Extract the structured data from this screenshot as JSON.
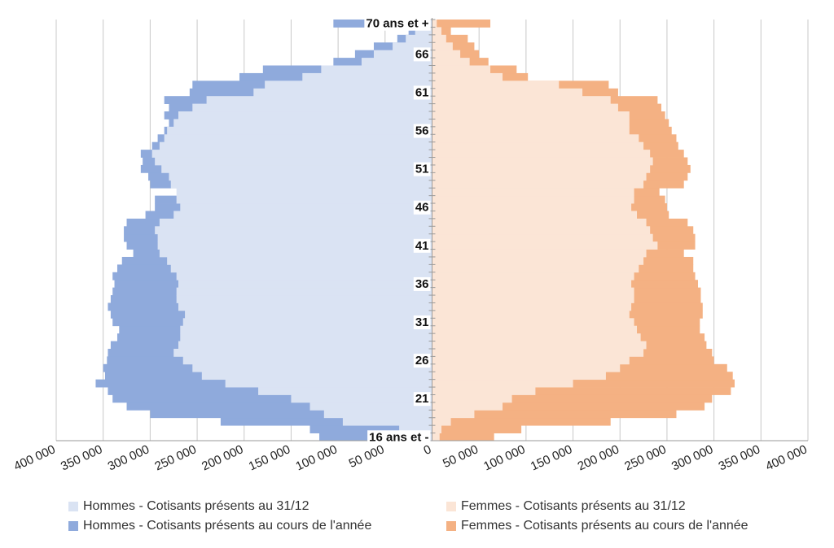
{
  "chart_data": {
    "type": "bar",
    "orientation": "horizontal-population-pyramid",
    "title": "",
    "xlabel": "",
    "ylabel": "",
    "xlim": [
      -400000,
      400000
    ],
    "x_ticks": [
      -400000,
      -350000,
      -300000,
      -250000,
      -200000,
      -150000,
      -100000,
      -50000,
      0,
      50000,
      100000,
      150000,
      200000,
      250000,
      300000,
      350000,
      400000
    ],
    "x_tick_labels": [
      "400 000",
      "350 000",
      "300 000",
      "250 000",
      "200 000",
      "150 000",
      "100 000",
      "50 000",
      "0",
      "50 000",
      "100 000",
      "150 000",
      "200 000",
      "250 000",
      "300 000",
      "350 000",
      "400 000"
    ],
    "grid": "vertical",
    "legend_position": "bottom",
    "y_tick_labels": [
      "16 ans et -",
      "21",
      "26",
      "31",
      "36",
      "41",
      "46",
      "51",
      "56",
      "61",
      "66",
      "70 ans et +"
    ],
    "categories": [
      "16 ans et -",
      "17",
      "18",
      "19",
      "20",
      "21",
      "22",
      "23",
      "24",
      "25",
      "26",
      "27",
      "28",
      "29",
      "30",
      "31",
      "32",
      "33",
      "34",
      "35",
      "36",
      "37",
      "38",
      "39",
      "40",
      "41",
      "42",
      "43",
      "44",
      "45",
      "46",
      "47",
      "48",
      "49",
      "50",
      "51",
      "52",
      "53",
      "54",
      "55",
      "56",
      "57",
      "58",
      "59",
      "60",
      "61",
      "62",
      "63",
      "64",
      "65",
      "66",
      "67",
      "68",
      "69",
      "70 ans et +"
    ],
    "series": [
      {
        "name": "Hommes - Cotisants présents au cours de l'année",
        "side": "left",
        "color": "#8faadc",
        "values": [
          120000,
          130000,
          225000,
          300000,
          325000,
          340000,
          345000,
          358000,
          348000,
          350000,
          346000,
          345000,
          342000,
          335000,
          333000,
          340000,
          342000,
          345000,
          342000,
          340000,
          338000,
          340000,
          335000,
          330000,
          318000,
          325000,
          328000,
          328000,
          325000,
          305000,
          295000,
          295000,
          262000,
          300000,
          302000,
          310000,
          308000,
          310000,
          298000,
          292000,
          285000,
          280000,
          285000,
          280000,
          285000,
          258000,
          255000,
          205000,
          180000,
          105000,
          82000,
          62000,
          37000,
          25000,
          105000
        ]
      },
      {
        "name": "Hommes - Cotisants présents au 31/12",
        "side": "left",
        "color": "#dae3f3",
        "values": [
          10000,
          35000,
          95000,
          115000,
          130000,
          150000,
          185000,
          220000,
          245000,
          255000,
          265000,
          275000,
          270000,
          268000,
          268000,
          265000,
          263000,
          270000,
          272000,
          272000,
          270000,
          272000,
          278000,
          282000,
          290000,
          292000,
          292000,
          295000,
          290000,
          275000,
          268000,
          272000,
          272000,
          278000,
          280000,
          288000,
          295000,
          298000,
          290000,
          285000,
          282000,
          275000,
          270000,
          255000,
          240000,
          190000,
          178000,
          138000,
          118000,
          75000,
          62000,
          42000,
          28000,
          18000,
          8000
        ]
      },
      {
        "name": "Femmes - Cotisants présents au cours de l'année",
        "side": "right",
        "color": "#f4b183",
        "values": [
          66000,
          95000,
          190000,
          260000,
          290000,
          298000,
          318000,
          322000,
          320000,
          314000,
          300000,
          298000,
          292000,
          290000,
          285000,
          285000,
          288000,
          288000,
          286000,
          286000,
          283000,
          280000,
          278000,
          278000,
          268000,
          280000,
          280000,
          278000,
          272000,
          252000,
          250000,
          248000,
          242000,
          268000,
          272000,
          275000,
          272000,
          268000,
          262000,
          260000,
          255000,
          252000,
          248000,
          244000,
          240000,
          198000,
          188000,
          102000,
          90000,
          60000,
          50000,
          45000,
          38000,
          20000,
          62000
        ]
      },
      {
        "name": "Femmes - Cotisants présents au 31/12",
        "side": "right",
        "color": "#fbe5d6",
        "values": [
          8000,
          10000,
          20000,
          45000,
          75000,
          85000,
          110000,
          150000,
          185000,
          200000,
          210000,
          225000,
          228000,
          222000,
          218000,
          215000,
          210000,
          212000,
          215000,
          215000,
          212000,
          215000,
          220000,
          225000,
          228000,
          240000,
          235000,
          232000,
          228000,
          218000,
          212000,
          215000,
          215000,
          225000,
          228000,
          232000,
          235000,
          232000,
          225000,
          220000,
          210000,
          210000,
          210000,
          198000,
          190000,
          160000,
          135000,
          75000,
          62000,
          40000,
          30000,
          22000,
          15000,
          10000,
          5000
        ]
      }
    ]
  }
}
